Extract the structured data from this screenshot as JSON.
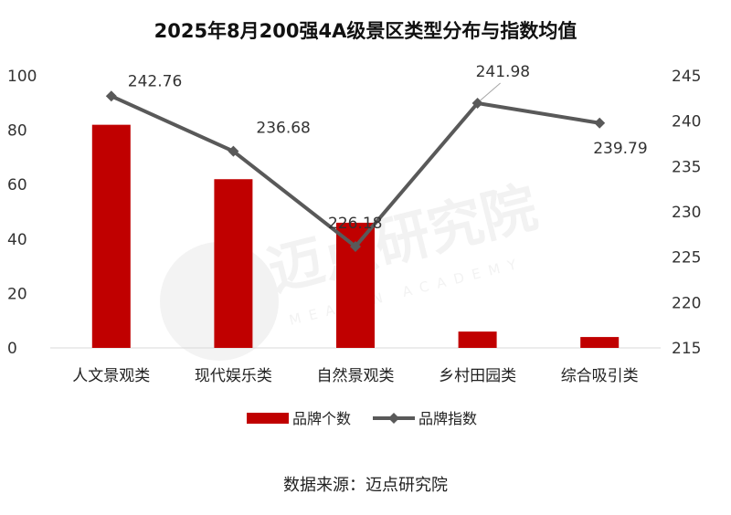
{
  "chart_data": {
    "type": "bar",
    "title": "2025年8月200强4A级景区类型分布与指数均值",
    "categories": [
      "人文景观类",
      "现代娱乐类",
      "自然景观类",
      "乡村田园类",
      "综合吸引类"
    ],
    "series": [
      {
        "name": "品牌个数",
        "type": "bar",
        "axis": "left",
        "color": "#C00000",
        "values": [
          82,
          62,
          46,
          6,
          4
        ]
      },
      {
        "name": "品牌指数",
        "type": "line",
        "axis": "right",
        "color": "#595959",
        "values": [
          242.76,
          236.68,
          226.18,
          241.98,
          239.79
        ]
      }
    ],
    "data_labels": [
      "242.76",
      "236.68",
      "226.18",
      "241.98",
      "239.79"
    ],
    "y_left": {
      "min": 0,
      "max": 100,
      "step": 20,
      "ticks": [
        "0",
        "20",
        "40",
        "60",
        "80",
        "100"
      ]
    },
    "y_right": {
      "min": 215,
      "max": 245,
      "step": 5,
      "ticks": [
        "215",
        "220",
        "225",
        "230",
        "235",
        "240",
        "245"
      ]
    },
    "grid": false,
    "legend": "bottom"
  },
  "watermark": {
    "text": "迈点研究院",
    "subtext": "MEADIN ACADEMY"
  },
  "source": "数据来源：迈点研究院"
}
